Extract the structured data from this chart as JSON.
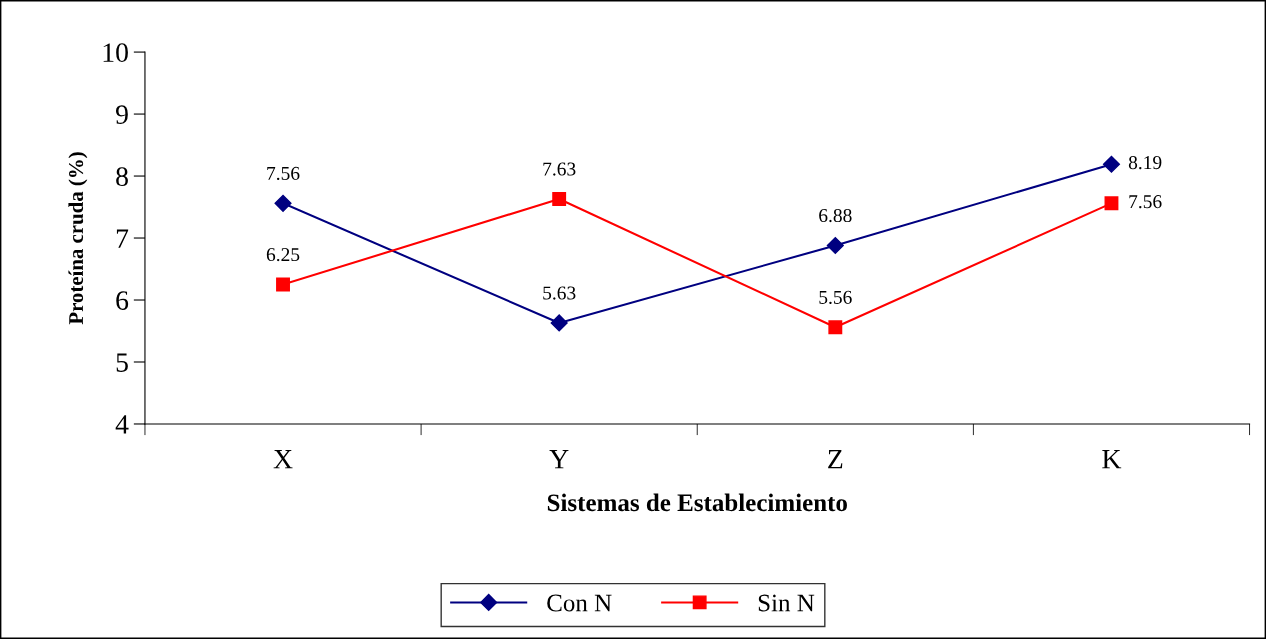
{
  "chart_data": {
    "type": "line",
    "xlabel": "Sistemas de Establecimiento",
    "ylabel": "Proteína cruda (%)",
    "categories": [
      "X",
      "Y",
      "Z",
      "K"
    ],
    "series": [
      {
        "name": "Con N",
        "color": "#000080",
        "marker": "diamond",
        "values": [
          7.56,
          5.63,
          6.88,
          8.19
        ]
      },
      {
        "name": "Sin N",
        "color": "#ff0000",
        "marker": "square",
        "values": [
          6.25,
          7.63,
          5.56,
          7.56
        ]
      }
    ],
    "ylim": [
      4,
      10
    ],
    "yticks": [
      4,
      5,
      6,
      7,
      8,
      9,
      10
    ],
    "grid": false,
    "legend": "bottom",
    "data_labels": true,
    "line_style": "solid"
  }
}
